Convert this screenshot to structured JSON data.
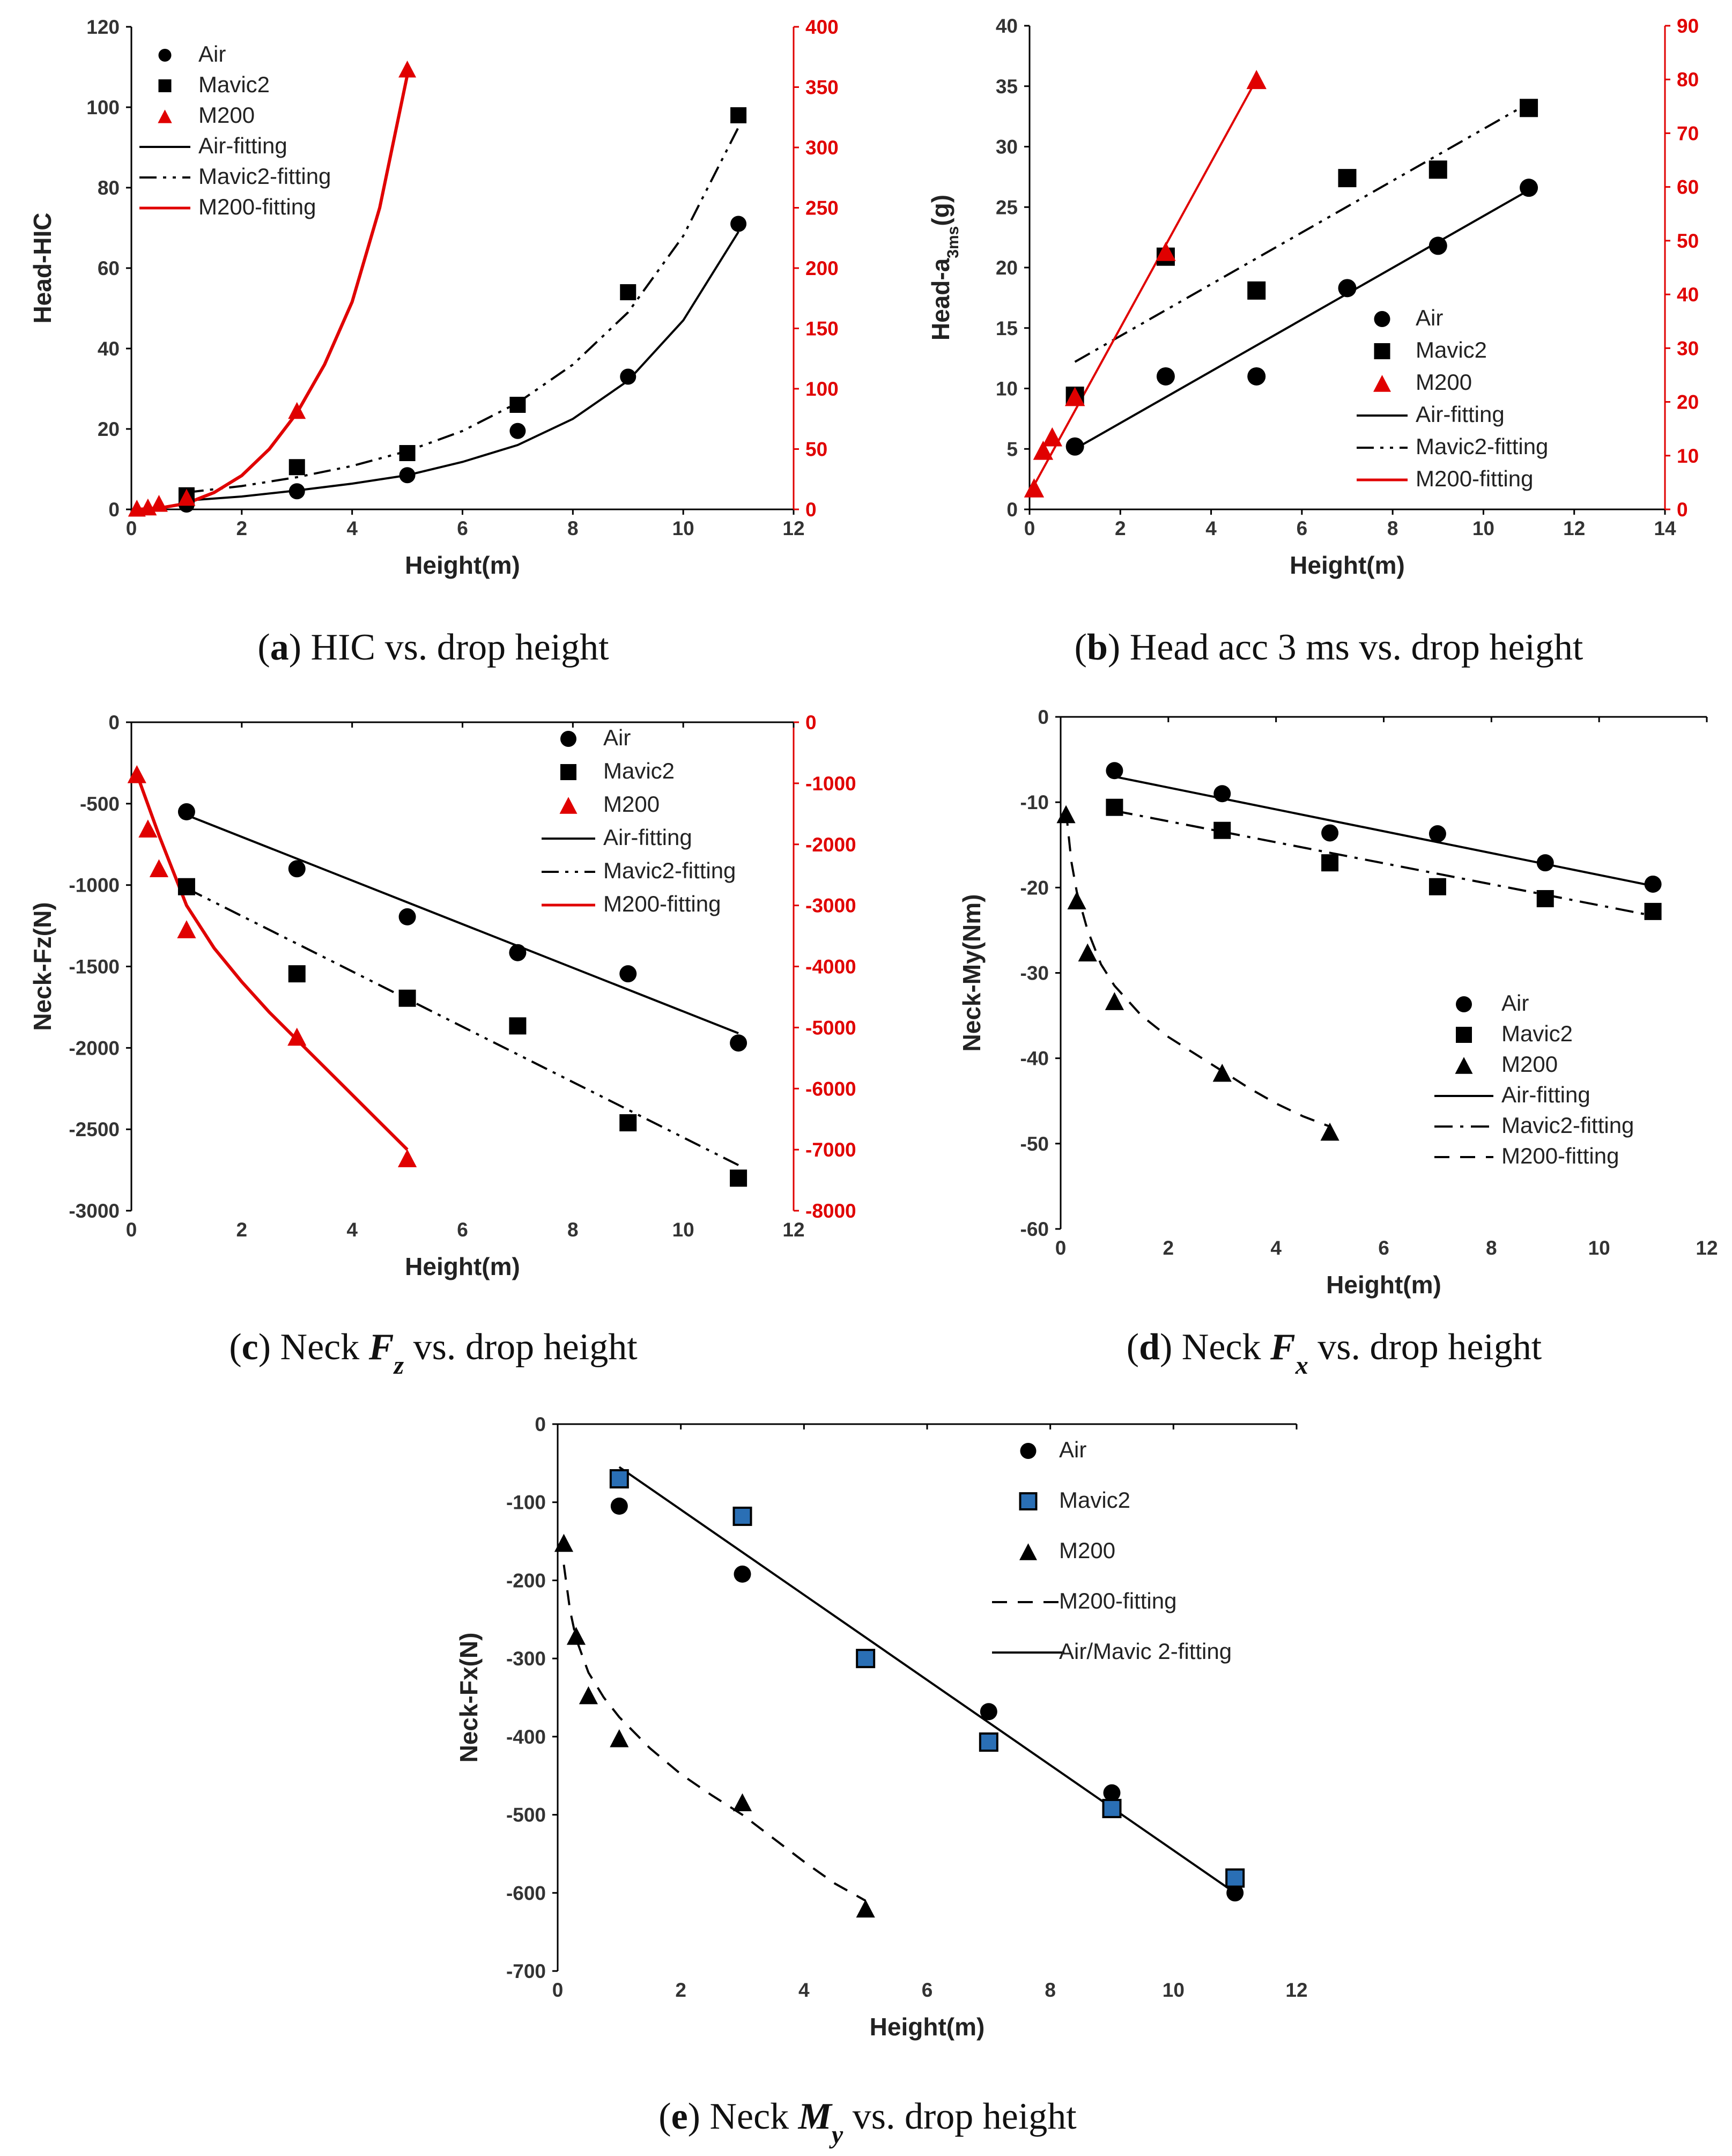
{
  "colors": {
    "black": "#000000",
    "red": "#e00000",
    "mavic_blue": "#2a6fb5"
  },
  "chart_data": [
    {
      "id": "a",
      "type": "scatter",
      "title": "",
      "caption": {
        "letter": "a",
        "before": " HIC vs. drop height",
        "var": "",
        "sub": "",
        "after": ""
      },
      "xlabel": "Height(m)",
      "ylabel": "Head-HIC",
      "xlim": [
        0,
        12
      ],
      "xticks": [
        0,
        2,
        4,
        6,
        8,
        10,
        12
      ],
      "ylim": [
        0,
        120
      ],
      "yticks": [
        0,
        20,
        40,
        60,
        80,
        100,
        120
      ],
      "ylim2": [
        0,
        400
      ],
      "yticks2": [
        0,
        50,
        100,
        150,
        200,
        250,
        300,
        350,
        400
      ],
      "grid": false,
      "legend_position": "top-left",
      "series": [
        {
          "name": "Air",
          "marker": "circle",
          "color": "#000000",
          "axis": "left",
          "x": [
            1,
            3,
            5,
            7,
            9,
            11
          ],
          "y": [
            1.2,
            4.5,
            8.5,
            19.5,
            33,
            71
          ]
        },
        {
          "name": "Mavic2",
          "marker": "square",
          "color": "#000000",
          "axis": "left",
          "x": [
            1,
            3,
            5,
            7,
            9,
            11
          ],
          "y": [
            3.5,
            10.5,
            14,
            26,
            54,
            98
          ]
        },
        {
          "name": "M200",
          "marker": "triangle",
          "color": "#e00000",
          "axis": "right",
          "x": [
            0.1,
            0.3,
            0.5,
            1,
            3,
            5
          ],
          "y": [
            1,
            2,
            5,
            10,
            82,
            365
          ]
        },
        {
          "name": "Air-fitting",
          "line": "solid",
          "color": "#000000",
          "axis": "left",
          "x": [
            1,
            2,
            3,
            4,
            5,
            6,
            7,
            8,
            9,
            10,
            11
          ],
          "y": [
            2.2,
            3.2,
            4.7,
            6.4,
            8.5,
            11.8,
            16,
            22.5,
            32,
            47,
            69
          ]
        },
        {
          "name": "Mavic2-fitting",
          "line": "dashdotdot",
          "color": "#000000",
          "axis": "left",
          "x": [
            1,
            2,
            3,
            4,
            5,
            6,
            7,
            8,
            9,
            10,
            11
          ],
          "y": [
            4.2,
            5.8,
            8,
            10.8,
            14.5,
            19.5,
            26.5,
            36,
            49,
            68,
            95
          ]
        },
        {
          "name": "M200-fitting",
          "line": "solid",
          "color": "#e00000",
          "axis": "right",
          "x": [
            0.1,
            0.5,
            1,
            1.5,
            2,
            2.5,
            3,
            3.5,
            4,
            4.5,
            5
          ],
          "y": [
            0,
            1,
            5,
            14,
            28,
            50,
            80,
            120,
            172,
            250,
            360
          ]
        }
      ]
    },
    {
      "id": "b",
      "type": "scatter",
      "title": "",
      "caption": {
        "letter": "b",
        "before": " Head acc 3 ms vs. drop height",
        "var": "",
        "sub": "",
        "after": ""
      },
      "xlabel": "Height(m)",
      "ylabel": "Head-a",
      "ylabel_sub": "3ms",
      "ylabel_tail": "(g)",
      "xlim": [
        0,
        14
      ],
      "xticks": [
        0,
        2,
        4,
        6,
        8,
        10,
        12,
        14
      ],
      "ylim": [
        0,
        40
      ],
      "yticks": [
        0,
        5,
        10,
        15,
        20,
        25,
        30,
        35,
        40
      ],
      "ylim2": [
        0,
        90
      ],
      "yticks2": [
        0,
        10,
        20,
        30,
        40,
        50,
        60,
        70,
        80,
        90
      ],
      "grid": false,
      "legend_position": "bottom-right",
      "series": [
        {
          "name": "Air",
          "marker": "circle",
          "color": "#000000",
          "axis": "left",
          "x": [
            1,
            3,
            5,
            7,
            9,
            11
          ],
          "y": [
            5.2,
            11,
            11,
            18.3,
            21.8,
            26.6
          ]
        },
        {
          "name": "Mavic2",
          "marker": "square",
          "color": "#000000",
          "axis": "left",
          "x": [
            1,
            3,
            5,
            7,
            9,
            11
          ],
          "y": [
            9.4,
            20.9,
            18.1,
            27.4,
            28.1,
            33.2
          ]
        },
        {
          "name": "M200",
          "marker": "triangle",
          "color": "#e00000",
          "axis": "right",
          "x": [
            0.1,
            0.3,
            0.5,
            1,
            3,
            5
          ],
          "y": [
            4,
            11,
            13.5,
            21,
            48,
            80
          ]
        },
        {
          "name": "Air-fitting",
          "line": "solid",
          "color": "#000000",
          "axis": "left",
          "x": [
            1,
            11
          ],
          "y": [
            5,
            26.4
          ]
        },
        {
          "name": "Mavic2-fitting",
          "line": "dashdotdot",
          "color": "#000000",
          "axis": "left",
          "x": [
            1,
            11
          ],
          "y": [
            12.2,
            33.6
          ]
        },
        {
          "name": "M200-fitting",
          "line": "solid",
          "color": "#e00000",
          "axis": "right",
          "x": [
            0.1,
            5
          ],
          "y": [
            4.5,
            80
          ]
        }
      ]
    },
    {
      "id": "c",
      "type": "scatter",
      "title": "",
      "caption": {
        "letter": "c",
        "before": " Neck ",
        "var": "F",
        "sub": "z",
        "after": " vs. drop height"
      },
      "xlabel": "Height(m)",
      "ylabel": "Neck-Fz(N)",
      "xlim": [
        0,
        12
      ],
      "xticks": [
        0,
        2,
        4,
        6,
        8,
        10,
        12
      ],
      "ylim": [
        -3000,
        0
      ],
      "yticks": [
        0,
        -500,
        -1000,
        -1500,
        -2000,
        -2500,
        -3000
      ],
      "ylim2": [
        -8000,
        0
      ],
      "yticks2": [
        0,
        -1000,
        -2000,
        -3000,
        -4000,
        -5000,
        -6000,
        -7000,
        -8000
      ],
      "grid": false,
      "legend_position": "top-right",
      "series": [
        {
          "name": "Air",
          "marker": "circle",
          "color": "#000000",
          "axis": "left",
          "x": [
            1,
            3,
            5,
            7,
            9,
            11
          ],
          "y": [
            -550,
            -900,
            -1195,
            -1415,
            -1545,
            -1970
          ]
        },
        {
          "name": "Mavic2",
          "marker": "square",
          "color": "#000000",
          "axis": "left",
          "x": [
            1,
            3,
            5,
            7,
            9,
            11
          ],
          "y": [
            -1010,
            -1545,
            -1695,
            -1865,
            -2460,
            -2800
          ]
        },
        {
          "name": "M200",
          "marker": "triangle",
          "color": "#e00000",
          "axis": "right",
          "x": [
            0.1,
            0.3,
            0.5,
            1,
            3,
            5
          ],
          "y": [
            -850,
            -1740,
            -2390,
            -3390,
            -5150,
            -7140
          ]
        },
        {
          "name": "Air-fitting",
          "line": "solid",
          "color": "#000000",
          "axis": "left",
          "x": [
            1,
            11
          ],
          "y": [
            -570,
            -1910
          ]
        },
        {
          "name": "Mavic2-fitting",
          "line": "dashdotdot",
          "color": "#000000",
          "axis": "left",
          "x": [
            1,
            11
          ],
          "y": [
            -1020,
            -2720
          ]
        },
        {
          "name": "M200-fitting",
          "line": "solid",
          "color": "#e00000",
          "axis": "right",
          "x": [
            0.1,
            0.5,
            1,
            1.5,
            2,
            2.5,
            3,
            3.5,
            4,
            4.5,
            5
          ],
          "y": [
            -850,
            -1850,
            -3000,
            -3700,
            -4250,
            -4750,
            -5200,
            -5650,
            -6100,
            -6550,
            -7000
          ]
        }
      ]
    },
    {
      "id": "d",
      "type": "scatter",
      "title": "",
      "caption": {
        "letter": "d",
        "before": " Neck ",
        "var": "F",
        "sub": "x",
        "after": " vs. drop height"
      },
      "xlabel": "Height(m)",
      "ylabel": "Neck-My(Nm)",
      "xlim": [
        0,
        12
      ],
      "xticks": [
        0,
        2,
        4,
        6,
        8,
        10,
        12
      ],
      "ylim": [
        -60,
        0
      ],
      "yticks": [
        0,
        -10,
        -20,
        -30,
        -40,
        -50,
        -60
      ],
      "grid": false,
      "legend_position": "bottom-right",
      "series": [
        {
          "name": "Air",
          "marker": "circle",
          "color": "#000000",
          "axis": "left",
          "x": [
            1,
            3,
            5,
            7,
            9,
            11
          ],
          "y": [
            -6.3,
            -9,
            -13.6,
            -13.7,
            -17.1,
            -19.6
          ]
        },
        {
          "name": "Mavic2",
          "marker": "square",
          "color": "#000000",
          "axis": "left",
          "x": [
            1,
            3,
            5,
            7,
            9,
            11
          ],
          "y": [
            -10.6,
            -13.3,
            -17.1,
            -19.9,
            -21.3,
            -22.8
          ]
        },
        {
          "name": "M200",
          "marker": "triangle",
          "color": "#000000",
          "axis": "left",
          "x": [
            0.1,
            0.3,
            0.5,
            1,
            3,
            5
          ],
          "y": [
            -11.4,
            -21.5,
            -27.6,
            -33.3,
            -41.7,
            -48.6
          ]
        },
        {
          "name": "Air-fitting",
          "line": "solid",
          "color": "#000000",
          "axis": "left",
          "x": [
            1,
            11
          ],
          "y": [
            -7,
            -19.8
          ]
        },
        {
          "name": "Mavic2-fitting",
          "line": "dashdot",
          "color": "#000000",
          "axis": "left",
          "x": [
            1,
            11
          ],
          "y": [
            -11,
            -23.3
          ]
        },
        {
          "name": "M200-fitting",
          "line": "dashed",
          "color": "#000000",
          "axis": "left",
          "x": [
            0.1,
            0.2,
            0.3,
            0.5,
            0.75,
            1,
            1.5,
            2,
            2.5,
            3,
            3.5,
            4,
            4.5,
            5
          ],
          "y": [
            -11,
            -17,
            -20.5,
            -25,
            -29,
            -31.5,
            -35,
            -37.5,
            -39.5,
            -41.5,
            -43.5,
            -45.3,
            -46.8,
            -48
          ]
        }
      ]
    },
    {
      "id": "e",
      "type": "scatter",
      "title": "",
      "caption": {
        "letter": "e",
        "before": " Neck ",
        "var": "M",
        "sub": "y",
        "after": " vs. drop height"
      },
      "xlabel": "Height(m)",
      "ylabel": "Neck-Fx(N)",
      "xlim": [
        0,
        12
      ],
      "xticks": [
        0,
        2,
        4,
        6,
        8,
        10,
        12
      ],
      "ylim": [
        -700,
        0
      ],
      "yticks": [
        0,
        -100,
        -200,
        -300,
        -400,
        -500,
        -600,
        -700
      ],
      "grid": false,
      "legend_position": "top-right",
      "series": [
        {
          "name": "Air",
          "marker": "circle",
          "color": "#000000",
          "axis": "left",
          "x": [
            1,
            3,
            7,
            9,
            11
          ],
          "y": [
            -105,
            -192,
            -368,
            -472,
            -600
          ]
        },
        {
          "name": "Mavic2",
          "marker": "square",
          "color": "#2a6fb5",
          "axis": "left",
          "x": [
            1,
            3,
            5,
            7,
            9,
            11
          ],
          "y": [
            -70,
            -118,
            -300,
            -407,
            -492,
            -581
          ]
        },
        {
          "name": "M200",
          "marker": "triangle",
          "color": "#000000",
          "axis": "left",
          "x": [
            0.1,
            0.3,
            0.5,
            1,
            3,
            5
          ],
          "y": [
            -152,
            -271,
            -347,
            -402,
            -484,
            -620
          ]
        },
        {
          "name": "M200-fitting",
          "line": "dashed",
          "color": "#000000",
          "axis": "left",
          "x": [
            0.1,
            0.2,
            0.3,
            0.5,
            0.75,
            1,
            1.5,
            2,
            2.5,
            3,
            3.5,
            4,
            4.5,
            5
          ],
          "y": [
            -180,
            -238,
            -275,
            -318,
            -350,
            -375,
            -415,
            -448,
            -475,
            -500,
            -530,
            -560,
            -588,
            -610
          ]
        },
        {
          "name": "Air/Mavic 2-fitting",
          "line": "solid",
          "color": "#000000",
          "axis": "left",
          "x": [
            1,
            11
          ],
          "y": [
            -55,
            -600
          ]
        }
      ]
    }
  ]
}
